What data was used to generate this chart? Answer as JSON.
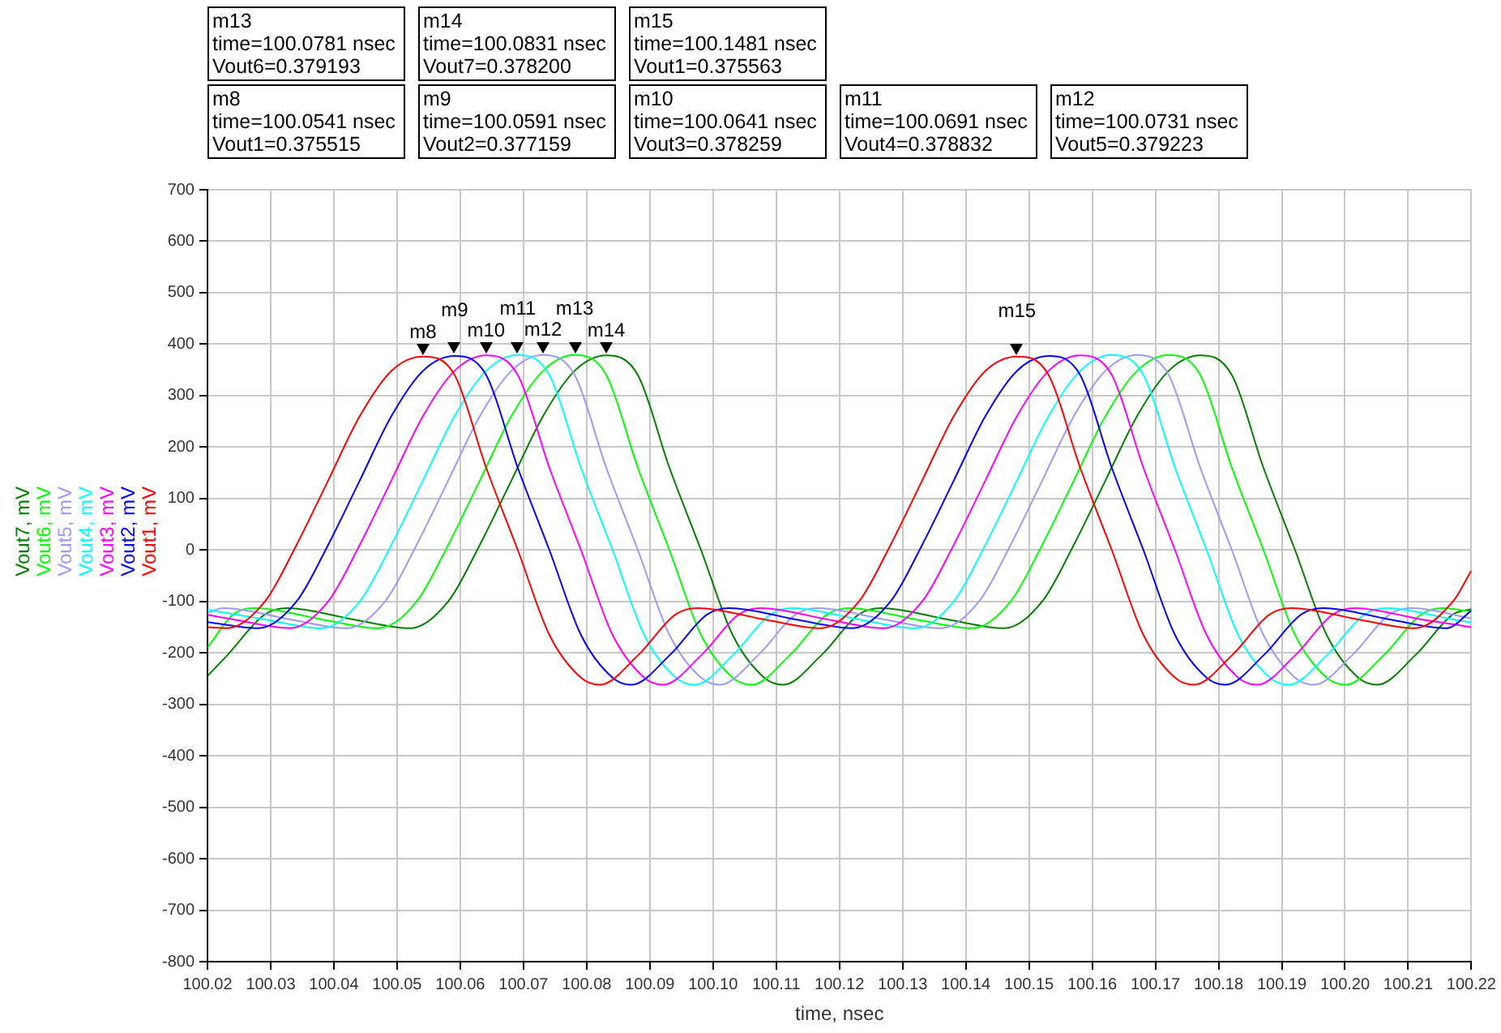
{
  "chart_data": {
    "type": "line",
    "xlabel": "time, nsec",
    "legend": "left",
    "grid": true,
    "marker": "none",
    "xlim": [
      100.02,
      100.22
    ],
    "ylim": [
      -800,
      700
    ],
    "xticks": [
      100.02,
      100.03,
      100.04,
      100.05,
      100.06,
      100.07,
      100.08,
      100.09,
      {
        "value": 100.1,
        "label": "100.10"
      },
      100.11,
      100.12,
      100.13,
      100.14,
      100.15,
      100.16,
      100.17,
      100.18,
      100.19,
      {
        "value": 100.2,
        "label": "100.20"
      },
      100.21,
      100.22
    ],
    "yticks": [
      -800,
      -700,
      -600,
      -500,
      -400,
      -300,
      -200,
      -100,
      0,
      100,
      200,
      300,
      400,
      500,
      600,
      700
    ],
    "series": [
      {
        "name": "Vout1, mV",
        "color": "#ff0000",
        "x": [
          100.02,
          100.0231,
          100.0291,
          100.0341,
          100.0391,
          100.0441,
          100.0491,
          100.0541,
          100.0591,
          100.0641,
          100.0691,
          100.0741,
          100.0791,
          100.0821,
          100.0881,
          100.0941,
          100.0976,
          100.1081,
          100.1171,
          100.1231,
          100.1281,
          100.1331,
          100.1381,
          100.1431,
          100.1481,
          100.1531,
          100.1581,
          100.1631,
          100.1681,
          100.1731,
          100.1761,
          100.1821,
          100.1881,
          100.1916,
          100.2021,
          100.2111,
          100.2171,
          100.22
        ],
        "values": [
          -150,
          -152,
          -100,
          10,
          135,
          260,
          348,
          376,
          340,
          160,
          0,
          -165,
          -248,
          -262,
          -205,
          -125,
          -113,
          -135,
          -152,
          -100,
          10,
          135,
          260,
          348,
          376,
          340,
          160,
          0,
          -165,
          -248,
          -262,
          -205,
          -125,
          -113,
          -135,
          -152,
          -100,
          -40
        ]
      },
      {
        "name": "Vout2, mV",
        "color": "#0000ff",
        "x": [
          100.02,
          100.0281,
          100.0341,
          100.0391,
          100.0441,
          100.0491,
          100.0541,
          100.0591,
          100.0641,
          100.0691,
          100.0741,
          100.0791,
          100.0841,
          100.0871,
          100.0931,
          100.0991,
          100.1026,
          100.1131,
          100.1221,
          100.1281,
          100.1331,
          100.1381,
          100.1431,
          100.1481,
          100.1531,
          100.1581,
          100.1631,
          100.1681,
          100.1731,
          100.1781,
          100.1811,
          100.1871,
          100.1931,
          100.1966,
          100.2071,
          100.2161,
          100.22
        ],
        "values": [
          -140,
          -152,
          -100,
          10,
          135,
          260,
          348,
          377,
          340,
          160,
          0,
          -165,
          -248,
          -262,
          -205,
          -125,
          -113,
          -135,
          -152,
          -100,
          10,
          135,
          260,
          348,
          377,
          340,
          160,
          0,
          -165,
          -248,
          -262,
          -205,
          -125,
          -113,
          -135,
          -152,
          -118
        ]
      },
      {
        "name": "Vout3, mV",
        "color": "#ff00ff",
        "x": [
          100.02,
          100.0241,
          100.0331,
          100.0391,
          100.0441,
          100.0491,
          100.0541,
          100.0591,
          100.0641,
          100.0691,
          100.0741,
          100.0791,
          100.0841,
          100.0891,
          100.0921,
          100.0981,
          100.1041,
          100.1076,
          100.1181,
          100.1271,
          100.1331,
          100.1381,
          100.1431,
          100.1481,
          100.1531,
          100.1581,
          100.1631,
          100.1681,
          100.1731,
          100.1781,
          100.1831,
          100.1861,
          100.1921,
          100.1981,
          100.2016,
          100.2121,
          100.22
        ],
        "values": [
          -126,
          -135,
          -152,
          -100,
          10,
          135,
          260,
          348,
          378,
          340,
          160,
          0,
          -165,
          -248,
          -262,
          -205,
          -125,
          -113,
          -135,
          -152,
          -100,
          10,
          135,
          260,
          348,
          378,
          340,
          160,
          0,
          -165,
          -248,
          -262,
          -205,
          -125,
          -113,
          -135,
          -150
        ]
      },
      {
        "name": "Vout4, mV",
        "color": "#00ffff",
        "x": [
          100.02,
          100.0291,
          100.0381,
          100.0441,
          100.0491,
          100.0541,
          100.0591,
          100.0641,
          100.0691,
          100.0741,
          100.0791,
          100.0841,
          100.0891,
          100.0941,
          100.0971,
          100.1031,
          100.1091,
          100.1126,
          100.1231,
          100.1321,
          100.1381,
          100.1431,
          100.1481,
          100.1531,
          100.1581,
          100.1631,
          100.1681,
          100.1731,
          100.1781,
          100.1831,
          100.1881,
          100.1911,
          100.1971,
          100.2031,
          100.2066,
          100.2171,
          100.22
        ],
        "values": [
          -116,
          -135,
          -152,
          -100,
          10,
          135,
          260,
          348,
          379,
          340,
          160,
          0,
          -165,
          -248,
          -262,
          -205,
          -125,
          -113,
          -135,
          -152,
          -100,
          10,
          135,
          260,
          348,
          379,
          340,
          160,
          0,
          -165,
          -248,
          -262,
          -205,
          -125,
          -113,
          -135,
          -141
        ]
      },
      {
        "name": "Vout5, mV",
        "color": "#9999ff",
        "x": [
          100.02,
          100.0226,
          100.0331,
          100.0421,
          100.0481,
          100.0531,
          100.0581,
          100.0631,
          100.0681,
          100.0731,
          100.0781,
          100.0831,
          100.0881,
          100.0931,
          100.0981,
          100.1011,
          100.1071,
          100.1131,
          100.1166,
          100.1271,
          100.1361,
          100.1421,
          100.1471,
          100.1521,
          100.1571,
          100.1621,
          100.1671,
          100.1721,
          100.1771,
          100.1821,
          100.1871,
          100.1921,
          100.1951,
          100.2011,
          100.2071,
          100.2106,
          100.22
        ],
        "values": [
          -122,
          -113,
          -135,
          -152,
          -100,
          10,
          135,
          260,
          348,
          379,
          340,
          160,
          0,
          -165,
          -248,
          -262,
          -205,
          -125,
          -113,
          -135,
          -152,
          -100,
          10,
          135,
          260,
          348,
          379,
          340,
          160,
          0,
          -165,
          -248,
          -262,
          -205,
          -125,
          -113,
          -133
        ]
      },
      {
        "name": "Vout6, mV",
        "color": "#00ff00",
        "x": [
          100.02,
          100.0241,
          100.0276,
          100.0381,
          100.0471,
          100.0531,
          100.0581,
          100.0631,
          100.0681,
          100.0731,
          100.0781,
          100.0831,
          100.0881,
          100.0931,
          100.0981,
          100.1031,
          100.1061,
          100.1121,
          100.1181,
          100.1216,
          100.1321,
          100.1411,
          100.1471,
          100.1521,
          100.1571,
          100.1621,
          100.1671,
          100.1721,
          100.1771,
          100.1821,
          100.1871,
          100.1921,
          100.1971,
          100.2001,
          100.2061,
          100.2121,
          100.2156,
          100.22
        ],
        "values": [
          -190,
          -125,
          -113,
          -135,
          -152,
          -100,
          10,
          135,
          260,
          348,
          379,
          340,
          160,
          0,
          -165,
          -248,
          -262,
          -205,
          -125,
          -113,
          -135,
          -152,
          -100,
          10,
          135,
          260,
          348,
          379,
          340,
          160,
          0,
          -165,
          -248,
          -262,
          -205,
          -125,
          -113,
          -120
        ]
      },
      {
        "name": "Vout7, mV",
        "color": "#007f00",
        "x": [
          100.02,
          100.0231,
          100.0291,
          100.0326,
          100.0431,
          100.0521,
          100.0581,
          100.0631,
          100.0681,
          100.0731,
          100.0781,
          100.0831,
          100.0881,
          100.0931,
          100.0981,
          100.1031,
          100.1081,
          100.1111,
          100.1171,
          100.1231,
          100.1266,
          100.1371,
          100.1461,
          100.1521,
          100.1571,
          100.1621,
          100.1671,
          100.1721,
          100.1771,
          100.1821,
          100.1871,
          100.1921,
          100.1971,
          100.2021,
          100.2051,
          100.2111,
          100.2171,
          100.22
        ],
        "values": [
          -245,
          -205,
          -125,
          -113,
          -135,
          -152,
          -100,
          10,
          135,
          260,
          348,
          378,
          340,
          160,
          0,
          -165,
          -248,
          -262,
          -205,
          -125,
          -113,
          -135,
          -152,
          -100,
          10,
          135,
          260,
          348,
          378,
          340,
          160,
          0,
          -165,
          -248,
          -262,
          -205,
          -125,
          -115
        ]
      }
    ],
    "annotations": [
      "m13\ntime=100.0781 nsec\nVout6=0.379193",
      "m14\ntime=100.0831 nsec\nVout7=0.378200",
      "m15\ntime=100.1481 nsec\nVout1=0.375563",
      "m8\ntime=100.0541 nsec\nVout1=0.375515",
      "m9\ntime=100.0591 nsec\nVout2=0.377159",
      "m10\ntime=100.0641 nsec\nVout3=0.378259",
      "m11\ntime=100.0691 nsec\nVout4=0.378832",
      "m12\ntime=100.0731 nsec\nVout5=0.379223",
      {
        "text": "m8",
        "x": 100.0541,
        "y": 375.515
      },
      {
        "text": "m9",
        "x": 100.0591,
        "y": 377.159
      },
      {
        "text": "m10",
        "x": 100.0641,
        "y": 378.259
      },
      {
        "text": "m11",
        "x": 100.0691,
        "y": 378.832
      },
      {
        "text": "m12",
        "x": 100.0731,
        "y": 379.223
      },
      {
        "text": "m13",
        "x": 100.0781,
        "y": 379.193
      },
      {
        "text": "m14",
        "x": 100.0831,
        "y": 378.2
      },
      {
        "text": "m15",
        "x": 100.1481,
        "y": 375.563
      }
    ]
  }
}
